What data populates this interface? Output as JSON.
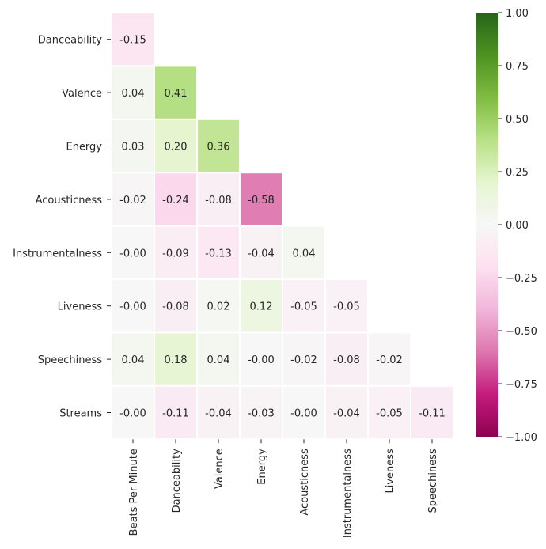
{
  "chart_data": {
    "type": "heatmap",
    "title": "",
    "xlabel": "",
    "ylabel": "",
    "x_labels": [
      "Beats Per Minute",
      "Danceability",
      "Valence",
      "Energy",
      "Acousticness",
      "Instrumentalness",
      "Liveness",
      "Speechiness"
    ],
    "y_labels": [
      "Danceability",
      "Valence",
      "Energy",
      "Acousticness",
      "Instrumentalness",
      "Liveness",
      "Speechiness",
      "Streams"
    ],
    "values": [
      [
        -0.15,
        null,
        null,
        null,
        null,
        null,
        null,
        null
      ],
      [
        0.04,
        0.41,
        null,
        null,
        null,
        null,
        null,
        null
      ],
      [
        0.03,
        0.2,
        0.36,
        null,
        null,
        null,
        null,
        null
      ],
      [
        -0.02,
        -0.24,
        -0.08,
        -0.58,
        null,
        null,
        null,
        null
      ],
      [
        -0.0,
        -0.09,
        -0.13,
        -0.04,
        0.04,
        null,
        null,
        null
      ],
      [
        -0.0,
        -0.08,
        0.02,
        0.12,
        -0.05,
        -0.05,
        null,
        null
      ],
      [
        0.04,
        0.18,
        0.04,
        -0.0,
        -0.02,
        -0.08,
        -0.02,
        null
      ],
      [
        -0.0,
        -0.11,
        -0.04,
        -0.03,
        -0.0,
        -0.04,
        -0.05,
        -0.11
      ]
    ],
    "value_labels": [
      [
        "-0.15",
        null,
        null,
        null,
        null,
        null,
        null,
        null
      ],
      [
        "0.04",
        "0.41",
        null,
        null,
        null,
        null,
        null,
        null
      ],
      [
        "0.03",
        "0.20",
        "0.36",
        null,
        null,
        null,
        null,
        null
      ],
      [
        "-0.02",
        "-0.24",
        "-0.08",
        "-0.58",
        null,
        null,
        null,
        null
      ],
      [
        "-0.00",
        "-0.09",
        "-0.13",
        "-0.04",
        "0.04",
        null,
        null,
        null
      ],
      [
        "-0.00",
        "-0.08",
        "0.02",
        "0.12",
        "-0.05",
        "-0.05",
        null,
        null
      ],
      [
        "0.04",
        "0.18",
        "0.04",
        "-0.00",
        "-0.02",
        "-0.08",
        "-0.02",
        null
      ],
      [
        "-0.00",
        "-0.11",
        "-0.04",
        "-0.03",
        "-0.00",
        "-0.04",
        "-0.05",
        "-0.11"
      ]
    ],
    "vmin": -1.0,
    "vmax": 1.0,
    "colormap": "PiYG",
    "colorbar_ticks": [
      1.0,
      0.75,
      0.5,
      0.25,
      0.0,
      -0.25,
      -0.5,
      -0.75,
      -1.0
    ],
    "colorbar_tick_labels": [
      "1.00",
      "0.75",
      "0.50",
      "0.25",
      "0.00",
      "−0.25",
      "−0.50",
      "−0.75",
      "−1.00"
    ],
    "mask": "upper-triangle",
    "grid": false
  }
}
